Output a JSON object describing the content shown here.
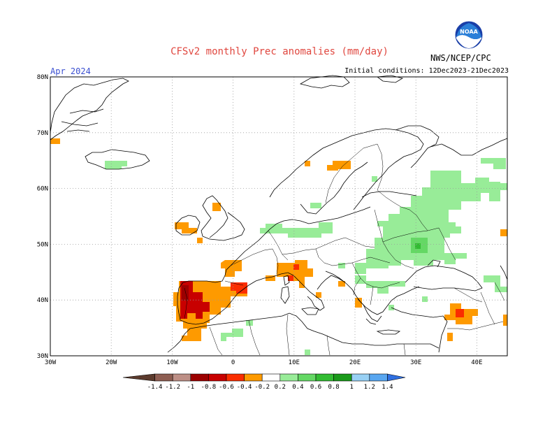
{
  "header": {
    "title": "CFSv2 monthly Prec anomalies (mm/day)",
    "month": "Apr 2024",
    "initial_conditions": "Initial conditions: 12Dec2023-21Dec2023",
    "agency": "NWS/NCEP/CPC",
    "logo_text": "NOAA"
  },
  "axes": {
    "lat_labels": [
      "80N",
      "70N",
      "60N",
      "50N",
      "40N",
      "30N"
    ],
    "lon_labels": [
      "30W",
      "20W",
      "10W",
      "0",
      "10E",
      "20E",
      "30E",
      "40E"
    ],
    "lat_range": [
      30,
      80
    ],
    "lon_range": [
      -30,
      45
    ],
    "grid": "dotted"
  },
  "colorbar": {
    "labels": [
      "-1.4",
      "-1.2",
      "-1",
      "-0.8",
      "-0.6",
      "-0.4",
      "-0.2",
      "0.2",
      "0.4",
      "0.6",
      "0.8",
      "1",
      "1.2",
      "1.4"
    ],
    "colors": [
      "#5c3b2d",
      "#8e5e52",
      "#bd8f86",
      "#9c0000",
      "#c80000",
      "#fa2d00",
      "#fe9a00",
      "#ffffff",
      "#98ec98",
      "#64d864",
      "#32bc32",
      "#1a9a1a",
      "#98d0f4",
      "#58a6f0",
      "#2f6fe0"
    ]
  },
  "colors": {
    "title": "#e0473f",
    "month": "#3a4fd0",
    "coastline": "#000000",
    "grid": "#9a9a9a"
  },
  "anomaly_regions": [
    {
      "name": "iberia-west-dry",
      "value": -0.7,
      "color": "#c80000"
    },
    {
      "name": "iberia-dry",
      "value": -0.3,
      "color": "#fe9a00"
    },
    {
      "name": "northeast-spain-dry",
      "value": -0.5,
      "color": "#fa2d00"
    },
    {
      "name": "france-south-dry",
      "value": -0.3,
      "color": "#fe9a00"
    },
    {
      "name": "italy-north-dry",
      "value": -0.3,
      "color": "#fe9a00"
    },
    {
      "name": "ireland-dry",
      "value": -0.3,
      "color": "#fe9a00"
    },
    {
      "name": "scotland-dry",
      "value": -0.3,
      "color": "#fe9a00"
    },
    {
      "name": "sweden-dry",
      "value": -0.3,
      "color": "#fe9a00"
    },
    {
      "name": "russia-wet",
      "value": 0.3,
      "color": "#98ec98"
    },
    {
      "name": "ukraine-wet",
      "value": 0.3,
      "color": "#98ec98"
    },
    {
      "name": "ukraine-wet-core",
      "value": 0.5,
      "color": "#64d864"
    },
    {
      "name": "levant-dry",
      "value": -0.3,
      "color": "#fe9a00"
    },
    {
      "name": "balkans-wet",
      "value": 0.3,
      "color": "#98ec98"
    },
    {
      "name": "north-africa-dry",
      "value": -0.3,
      "color": "#fe9a00"
    },
    {
      "name": "iceland-wet",
      "value": 0.3,
      "color": "#98ec98"
    }
  ]
}
